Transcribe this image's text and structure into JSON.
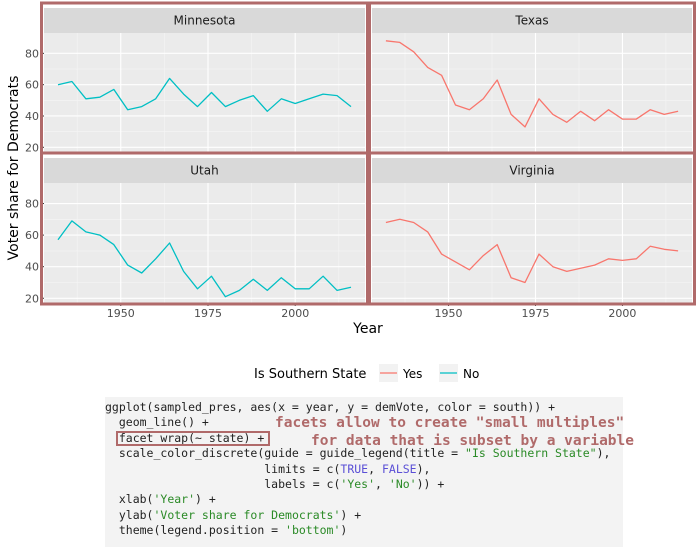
{
  "chart_data": {
    "type": "line",
    "facets": [
      "Minnesota",
      "Texas",
      "Utah",
      "Virginia"
    ],
    "xlabel": "Year",
    "ylabel": "Voter share for Democrats",
    "xlim": [
      1928,
      2020
    ],
    "ylim": [
      17,
      93
    ],
    "x_ticks": [
      1950,
      1975,
      2000
    ],
    "y_ticks": [
      20,
      40,
      60,
      80
    ],
    "legend": {
      "title": "Is Southern State",
      "position": "bottom",
      "entries": [
        {
          "label": "Yes",
          "color": "#F8766D"
        },
        {
          "label": "No",
          "color": "#00BFC4"
        }
      ]
    },
    "x": [
      1932,
      1936,
      1940,
      1944,
      1948,
      1952,
      1956,
      1960,
      1964,
      1968,
      1972,
      1976,
      1980,
      1984,
      1988,
      1992,
      1996,
      2000,
      2004,
      2008,
      2012,
      2016
    ],
    "series": [
      {
        "facet": "Minnesota",
        "group": "No",
        "color": "#00BFC4",
        "values": [
          60,
          62,
          51,
          52,
          57,
          44,
          46,
          51,
          64,
          54,
          46,
          55,
          46,
          50,
          53,
          43,
          51,
          48,
          51,
          54,
          53,
          46
        ]
      },
      {
        "facet": "Texas",
        "group": "Yes",
        "color": "#F8766D",
        "values": [
          88,
          87,
          81,
          71,
          66,
          47,
          44,
          51,
          63,
          41,
          33,
          51,
          41,
          36,
          43,
          37,
          44,
          38,
          38,
          44,
          41,
          43
        ]
      },
      {
        "facet": "Utah",
        "group": "No",
        "color": "#00BFC4",
        "values": [
          57,
          69,
          62,
          60,
          54,
          41,
          36,
          45,
          55,
          37,
          26,
          34,
          21,
          25,
          32,
          25,
          33,
          26,
          26,
          34,
          25,
          27
        ]
      },
      {
        "facet": "Virginia",
        "group": "Yes",
        "color": "#F8766D",
        "values": [
          68,
          70,
          68,
          62,
          48,
          43,
          38,
          47,
          54,
          33,
          30,
          48,
          40,
          37,
          39,
          41,
          45,
          44,
          45,
          53,
          51,
          50
        ]
      }
    ]
  },
  "code_lines": [
    [
      {
        "t": "ggplot(sampled_pres, aes(x = year, y = demVote, color = south)) +"
      }
    ],
    [
      {
        "t": "  geom_line() +"
      }
    ],
    [
      {
        "t": "  facet_wrap(~ state) +"
      }
    ],
    [
      {
        "t": "  scale_color_discrete(guide = guide_legend(title = "
      },
      {
        "t": "\"Is Southern State\"",
        "c": "str"
      },
      {
        "t": "),"
      }
    ],
    [
      {
        "t": "                       limits = c("
      },
      {
        "t": "TRUE",
        "c": "kw"
      },
      {
        "t": ", "
      },
      {
        "t": "FALSE",
        "c": "kw"
      },
      {
        "t": "),"
      }
    ],
    [
      {
        "t": "                       labels = c("
      },
      {
        "t": "'Yes'",
        "c": "str"
      },
      {
        "t": ", "
      },
      {
        "t": "'No'",
        "c": "str"
      },
      {
        "t": ")) +"
      }
    ],
    [
      {
        "t": "  xlab("
      },
      {
        "t": "'Year'",
        "c": "str"
      },
      {
        "t": ") +"
      }
    ],
    [
      {
        "t": "  ylab("
      },
      {
        "t": "'Voter share for Democrats'",
        "c": "str"
      },
      {
        "t": ") +"
      }
    ],
    [
      {
        "t": "  theme(legend.position = "
      },
      {
        "t": "'bottom'",
        "c": "str"
      },
      {
        "t": ")"
      }
    ]
  ],
  "annotation": {
    "line1": "facets allow to create \"small multiples\"",
    "line2": "for data that is subset by a variable"
  },
  "colors": {
    "highlight": "#B06A6A"
  }
}
